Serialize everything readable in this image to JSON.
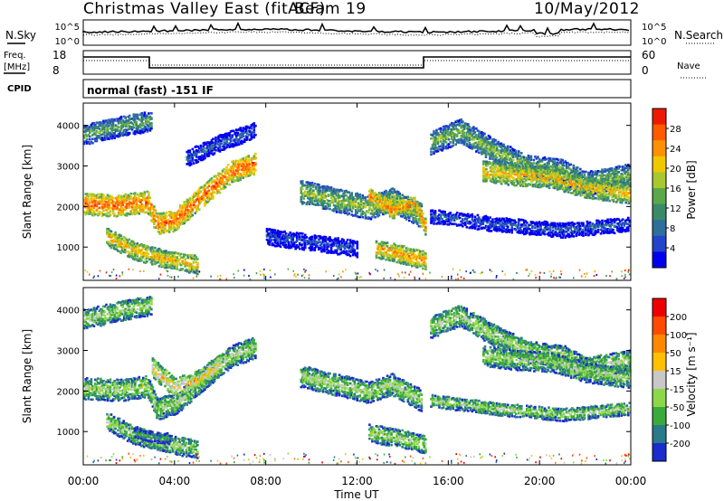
{
  "header": {
    "station": "Christmas Valley East (fitACF)",
    "beam": "Beam 19",
    "date": "10/May/2012"
  },
  "top_panels": {
    "nsky_label": "N.Sky",
    "nsky_ticks": [
      "10^5",
      "10^0"
    ],
    "nsearch_label": "N.Search",
    "nsearch_ticks": [
      "10^5",
      "10^0"
    ],
    "freq_label_1": "Freq.",
    "freq_label_2": "[MHz]",
    "freq_ticks": [
      "18",
      "8"
    ],
    "nave_label": "Nave",
    "nave_ticks": [
      "60",
      "0"
    ],
    "cpid_label": "CPID",
    "cpid_value": "normal (fast) -151 IF"
  },
  "chart_data": [
    {
      "type": "heatmap",
      "panel": "power",
      "xlabel": "",
      "ylabel": "Slant Range [km]",
      "yticks": [
        "1000",
        "2000",
        "3000",
        "4000"
      ],
      "ylim": [
        180,
        4550
      ],
      "colorbar_label": "Power [dB]",
      "colorbar_ticks": [
        "28",
        "24",
        "20",
        "16",
        "12",
        "8",
        "4"
      ],
      "colors": [
        "#0000ee",
        "#2244cc",
        "#2d6e9a",
        "#3a8a6a",
        "#5aa84a",
        "#a8c830",
        "#f0c800",
        "#ff9000",
        "#ff5a00",
        "#ee1a00"
      ],
      "bands": [
        {
          "t": [
            0,
            1.5,
            2.8,
            3.2,
            4.0,
            5.0,
            6.5,
            7.5
          ],
          "y": [
            2100,
            2050,
            2150,
            1600,
            1700,
            2200,
            2900,
            3100
          ],
          "w": 260,
          "v": 0.85
        },
        {
          "t": [
            0,
            1.5,
            3.0
          ],
          "y": [
            3800,
            4000,
            4150
          ],
          "w": 240,
          "v": 0.45
        },
        {
          "t": [
            1.0,
            2.2,
            3.5,
            5.0
          ],
          "y": [
            1300,
            950,
            750,
            600
          ],
          "w": 220,
          "v": 0.7
        },
        {
          "t": [
            9.5,
            11.0,
            12.5,
            13.5,
            14.8
          ],
          "y": [
            2400,
            2200,
            2000,
            2200,
            1800
          ],
          "w": 280,
          "v": 0.55
        },
        {
          "t": [
            12.5,
            13.5,
            14.5,
            15.0
          ],
          "y": [
            2300,
            1950,
            2100,
            1500
          ],
          "w": 200,
          "v": 0.8
        },
        {
          "t": [
            12.8,
            14.0,
            15.0
          ],
          "y": [
            1000,
            850,
            700
          ],
          "w": 220,
          "v": 0.75
        },
        {
          "t": [
            15.2,
            16.5,
            18.0,
            19.5,
            21.0,
            22.0,
            24.0
          ],
          "y": [
            3600,
            3900,
            3400,
            3000,
            2900,
            2600,
            2800
          ],
          "w": 280,
          "v": 0.5
        },
        {
          "t": [
            17.5,
            19.0,
            20.5,
            22.0,
            24.0
          ],
          "y": [
            2900,
            2800,
            2750,
            2500,
            2350
          ],
          "w": 250,
          "v": 0.7
        },
        {
          "t": [
            15.2,
            18.0,
            21.0,
            24.0
          ],
          "y": [
            1800,
            1600,
            1450,
            1600
          ],
          "w": 170,
          "v": 0.25
        },
        {
          "t": [
            8.0,
            10.0,
            12.0
          ],
          "y": [
            1300,
            1150,
            1000
          ],
          "w": 200,
          "v": 0.2
        },
        {
          "t": [
            4.5,
            6.0,
            7.5
          ],
          "y": [
            3200,
            3600,
            3900
          ],
          "w": 180,
          "v": 0.25
        }
      ]
    },
    {
      "type": "heatmap",
      "panel": "velocity",
      "xlabel": "Time UT",
      "ylabel": "Slant Range [km]",
      "xticks": [
        "00:00",
        "04:00",
        "08:00",
        "12:00",
        "16:00",
        "20:00",
        "00:00"
      ],
      "yticks": [
        "1000",
        "2000",
        "3000",
        "4000"
      ],
      "ylim": [
        180,
        4550
      ],
      "colorbar_label": "Velocity [m s⁻¹]",
      "colorbar_ticks": [
        "200",
        "100",
        "50",
        "15",
        "-15",
        "-50",
        "-100",
        "-200"
      ],
      "colors": [
        "#1a2ccc",
        "#2a7a8a",
        "#3aaa3a",
        "#8cd84a",
        "#c8c8c8",
        "#ffc000",
        "#ff8800",
        "#ff4a00",
        "#ee0000"
      ],
      "bands": [
        {
          "t": [
            0,
            1.5,
            2.8,
            3.2,
            4.0,
            5.0,
            6.5,
            7.5
          ],
          "y": [
            2100,
            2050,
            2150,
            1600,
            1700,
            2200,
            2900,
            3100
          ],
          "w": 260,
          "v": 0.45
        },
        {
          "t": [
            0,
            1.5,
            3.0
          ],
          "y": [
            3800,
            4000,
            4150
          ],
          "w": 240,
          "v": 0.45
        },
        {
          "t": [
            3.0,
            4.0,
            5.0,
            6.0
          ],
          "y": [
            2600,
            2100,
            2300,
            2700
          ],
          "w": 230,
          "v": 0.6
        },
        {
          "t": [
            1.0,
            2.2,
            3.5,
            5.0
          ],
          "y": [
            1300,
            950,
            750,
            600
          ],
          "w": 220,
          "v": 0.45
        },
        {
          "t": [
            9.5,
            11.0,
            12.5,
            13.5,
            14.8
          ],
          "y": [
            2400,
            2200,
            2000,
            2200,
            1800
          ],
          "w": 260,
          "v": 0.45
        },
        {
          "t": [
            12.5,
            14.0,
            15.0
          ],
          "y": [
            1000,
            850,
            700
          ],
          "w": 220,
          "v": 0.45
        },
        {
          "t": [
            15.2,
            16.5,
            18.0,
            19.5,
            21.0,
            22.0,
            24.0
          ],
          "y": [
            3600,
            3900,
            3400,
            3000,
            2900,
            2600,
            2800
          ],
          "w": 260,
          "v": 0.45
        },
        {
          "t": [
            17.5,
            19.0,
            20.5,
            22.0,
            24.0
          ],
          "y": [
            2900,
            2800,
            2750,
            2500,
            2350
          ],
          "w": 240,
          "v": 0.45
        },
        {
          "t": [
            15.2,
            18.0,
            21.0,
            24.0
          ],
          "y": [
            1800,
            1600,
            1450,
            1600
          ],
          "w": 150,
          "v": 0.45
        },
        {
          "t": [
            2.2,
            3.0,
            3.8
          ],
          "y": [
            1000,
            900,
            850
          ],
          "w": 120,
          "v": 0.3
        }
      ]
    }
  ]
}
